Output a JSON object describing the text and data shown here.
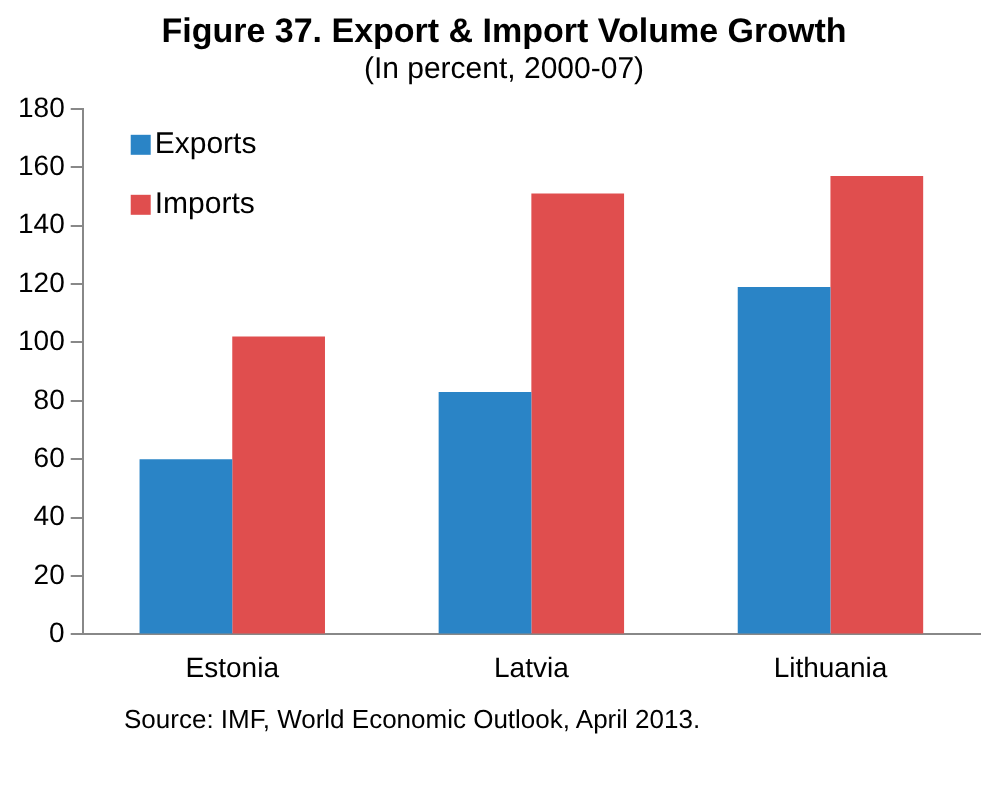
{
  "chart_data": {
    "type": "bar",
    "title": "Figure 37. Export & Import Volume Growth",
    "subtitle": "(In percent, 2000-07)",
    "categories": [
      "Estonia",
      "Latvia",
      "Lithuania"
    ],
    "series": [
      {
        "name": "Exports",
        "color": "#2a84c6",
        "values": [
          60,
          83,
          119
        ]
      },
      {
        "name": "Imports",
        "color": "#e04e4e",
        "values": [
          102,
          151,
          157
        ]
      }
    ],
    "ylim": [
      0,
      180
    ],
    "yticks": [
      0,
      20,
      40,
      60,
      80,
      100,
      120,
      140,
      160,
      180
    ],
    "grid": false,
    "legend": "top left",
    "annotations": [
      "Source:  IMF, World Economic Outlook, April 2013."
    ]
  }
}
